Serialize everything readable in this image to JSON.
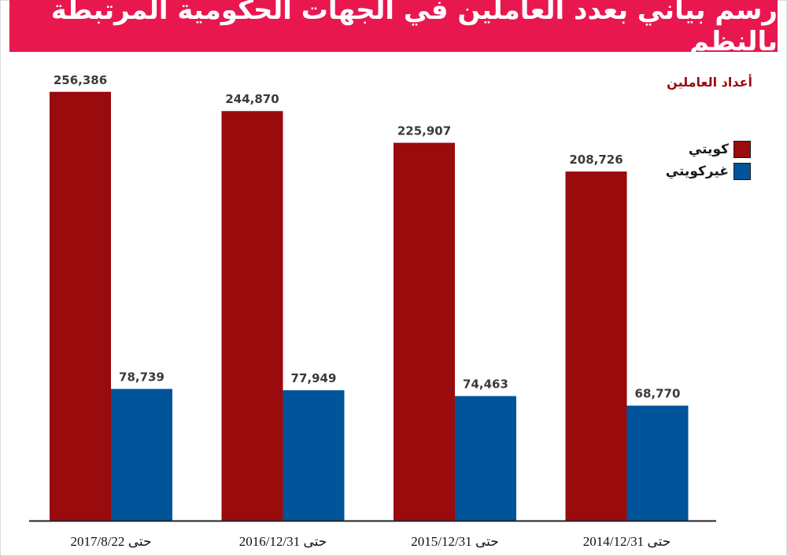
{
  "chart_data": {
    "type": "bar",
    "title": "رسم بياني بعدد العاملين في الجهات الحكومية المرتبطة بالنظم",
    "ylabel": "أعداد العاملين",
    "xlabel": "",
    "categories": [
      "حتى 2017/8/22",
      "حتى 2016/12/31",
      "حتى 2015/12/31",
      "حتى 2014/12/31"
    ],
    "series": [
      {
        "name": "كويتي",
        "color": "#9a0b0e",
        "values": [
          256386,
          244870,
          225907,
          208726
        ],
        "labels": [
          "256,386",
          "244,870",
          "225,907",
          "208,726"
        ]
      },
      {
        "name": "غيركويتي",
        "color": "#00549a",
        "values": [
          78739,
          77949,
          74463,
          68770
        ],
        "labels": [
          "78,739",
          "77,949",
          "74,463",
          "68,770"
        ]
      }
    ],
    "ylim": [
      0,
      300000
    ],
    "grid": false,
    "legend_position": "top-right"
  }
}
